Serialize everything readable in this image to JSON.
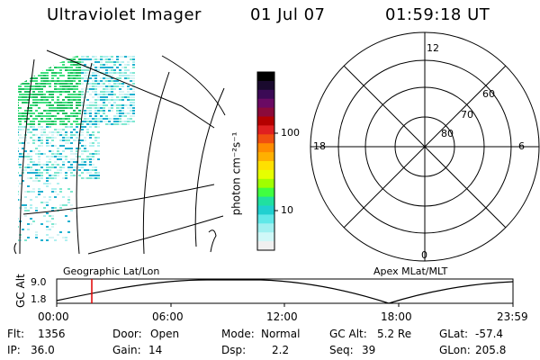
{
  "header": {
    "instrument": "Ultraviolet Imager",
    "date": "01 Jul 07",
    "time": "01:59:18 UT"
  },
  "colorbar": {
    "label": "photon cm⁻²s⁻¹",
    "ticks": [
      "100",
      "10"
    ],
    "colors": [
      "#000000",
      "#1a0a2e",
      "#3b0a55",
      "#6a0a63",
      "#8b0a3a",
      "#b50000",
      "#e02020",
      "#f05010",
      "#ff8c00",
      "#ffb000",
      "#ffe000",
      "#e6ff00",
      "#a0ff00",
      "#40ff40",
      "#20e0a0",
      "#20d0d0",
      "#60e8e8",
      "#a0f0f0",
      "#d0f8f8",
      "#f0f0f0"
    ]
  },
  "polar": {
    "mlt_labels": {
      "top": "12",
      "left": "18",
      "right": "6",
      "bottom": "0"
    },
    "lat_labels": [
      "60",
      "70",
      "80"
    ]
  },
  "timeline": {
    "axis_title": "GC Alt",
    "y_ticks": [
      "9.0",
      "1.8"
    ],
    "left_label": "Geographic Lat/Lon",
    "right_label": "Apex MLat/MLT",
    "x_ticks": [
      "00:00",
      "06:00",
      "12:00",
      "18:00",
      "23:59"
    ],
    "marker_color": "#e00000"
  },
  "footer": {
    "rows": [
      [
        {
          "k": "Flt:",
          "v": "1356"
        },
        {
          "k": "Door:",
          "v": "Open"
        },
        {
          "k": "Mode:",
          "v": "Normal"
        },
        {
          "k": "GC Alt:",
          "v": "5.2 Re"
        },
        {
          "k": "GLat:",
          "v": "-57.4"
        }
      ],
      [
        {
          "k": "IP:",
          "v": "36.0"
        },
        {
          "k": "Gain:",
          "v": "14"
        },
        {
          "k": "Dsp:",
          "v": "2.2"
        },
        {
          "k": "Seq:",
          "v": "39"
        },
        {
          "k": "GLon:",
          "v": "205.8"
        }
      ]
    ]
  }
}
